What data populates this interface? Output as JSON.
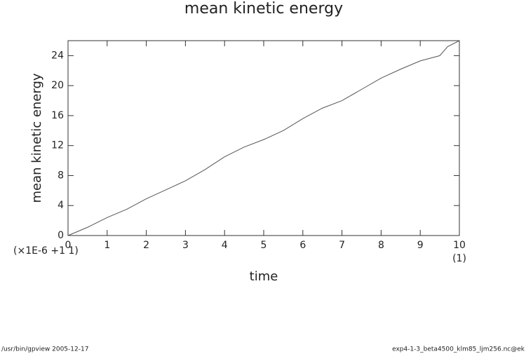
{
  "chart_data": {
    "type": "line",
    "title": "mean kinetic energy",
    "x_label": "time",
    "y_label": "mean kinetic energy",
    "x_scale_note": "(×1E-6 +1 1)",
    "x_unit": "(1)",
    "x": [
      0,
      0.5,
      1,
      1.5,
      2,
      2.5,
      3,
      3.5,
      4,
      4.5,
      5,
      5.5,
      6,
      6.5,
      7,
      7.5,
      8,
      8.5,
      9,
      9.5,
      9.7,
      10
    ],
    "series": [
      {
        "name": "mean kinetic energy",
        "color": "#555555",
        "values": [
          0,
          1.1,
          2.4,
          3.5,
          4.9,
          6.1,
          7.3,
          8.8,
          10.5,
          11.8,
          12.8,
          14,
          15.6,
          17,
          18,
          19.5,
          21,
          22.2,
          23.3,
          24,
          25.2,
          26
        ]
      }
    ],
    "xlim": [
      0,
      10
    ],
    "xticks": [
      0,
      1,
      2,
      3,
      4,
      5,
      6,
      7,
      8,
      9,
      10
    ],
    "ylim": [
      0,
      26
    ],
    "yticks": [
      0,
      4,
      8,
      12,
      16,
      20,
      24
    ],
    "footer_left": "/usr/bin/gpview   2005-12-17",
    "footer_right": "exp4-1-3_beta4500_klm85_ljm256.nc@ek"
  }
}
